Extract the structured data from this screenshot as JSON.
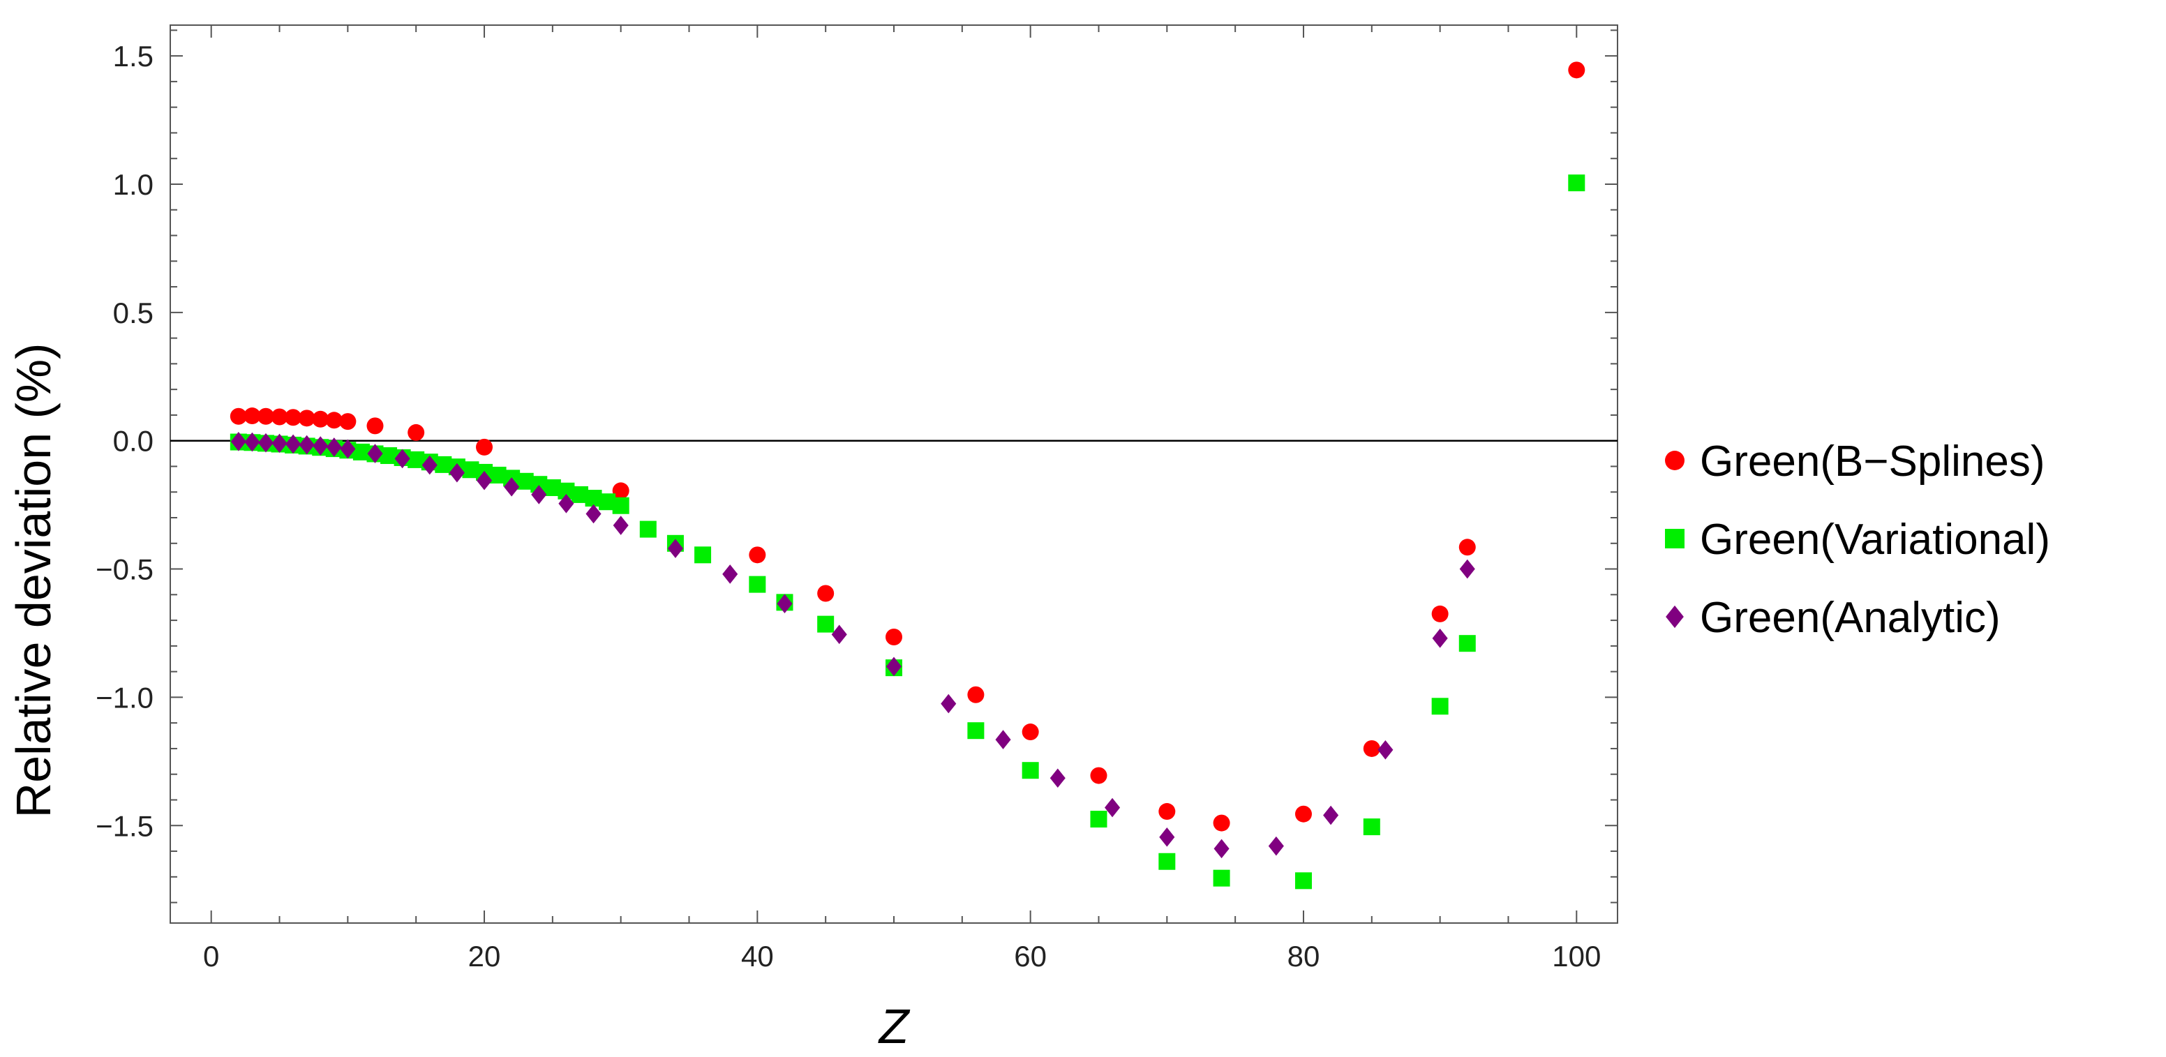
{
  "chart_data": {
    "type": "scatter",
    "xlabel": "Z",
    "ylabel": "Relative deviation (%)",
    "xlim": [
      -3,
      103
    ],
    "ylim": [
      -1.88,
      1.62
    ],
    "xticks": [
      0,
      20,
      40,
      60,
      80,
      100
    ],
    "yticks": [
      -1.5,
      -1.0,
      -0.5,
      0.0,
      0.5,
      1.0,
      1.5
    ],
    "xtick_labels": [
      "0",
      "20",
      "40",
      "60",
      "80",
      "100"
    ],
    "ytick_labels": [
      "−1.5",
      "−1.0",
      "−0.5",
      "0.0",
      "0.5",
      "1.0",
      "1.5"
    ],
    "reference_line_y": 0,
    "frame": true,
    "grid": false,
    "legend_placement": "right",
    "series": [
      {
        "name": "Green(B−Splines)",
        "marker": "circle",
        "color": "#ff0000",
        "x": [
          2,
          3,
          4,
          5,
          6,
          7,
          8,
          9,
          10,
          12,
          15,
          20,
          30,
          40,
          45,
          50,
          56,
          60,
          65,
          70,
          74,
          80,
          85,
          90,
          92,
          100
        ],
        "y": [
          0.095,
          0.097,
          0.095,
          0.093,
          0.091,
          0.088,
          0.084,
          0.08,
          0.075,
          0.058,
          0.032,
          -0.025,
          -0.195,
          -0.445,
          -0.595,
          -0.765,
          -0.99,
          -1.135,
          -1.305,
          -1.445,
          -1.49,
          -1.455,
          -1.2,
          -0.675,
          -0.415,
          1.445
        ]
      },
      {
        "name": "Green(Variational)",
        "marker": "square",
        "color": "#00ee00",
        "x": [
          2,
          3,
          4,
          5,
          6,
          7,
          8,
          9,
          10,
          11,
          12,
          13,
          14,
          15,
          16,
          17,
          18,
          19,
          20,
          21,
          22,
          23,
          24,
          25,
          26,
          27,
          28,
          29,
          30,
          32,
          34,
          36,
          40,
          42,
          45,
          50,
          56,
          60,
          65,
          70,
          74,
          80,
          85,
          90,
          92,
          100
        ],
        "y": [
          -0.005,
          -0.007,
          -0.01,
          -0.013,
          -0.017,
          -0.021,
          -0.026,
          -0.031,
          -0.037,
          -0.044,
          -0.051,
          -0.058,
          -0.066,
          -0.074,
          -0.083,
          -0.093,
          -0.102,
          -0.113,
          -0.123,
          -0.134,
          -0.146,
          -0.158,
          -0.17,
          -0.183,
          -0.196,
          -0.21,
          -0.224,
          -0.238,
          -0.253,
          -0.345,
          -0.4,
          -0.445,
          -0.56,
          -0.63,
          -0.715,
          -0.885,
          -1.13,
          -1.285,
          -1.475,
          -1.64,
          -1.705,
          -1.715,
          -1.505,
          -1.035,
          -0.79,
          1.005
        ]
      },
      {
        "name": "Green(Analytic)",
        "marker": "diamond",
        "color": "#800080",
        "x": [
          2,
          3,
          4,
          5,
          6,
          7,
          8,
          9,
          10,
          12,
          14,
          16,
          18,
          20,
          22,
          24,
          26,
          28,
          30,
          34,
          38,
          42,
          46,
          50,
          54,
          58,
          62,
          66,
          70,
          74,
          78,
          82,
          86,
          90,
          92
        ],
        "y": [
          -0.003,
          -0.005,
          -0.008,
          -0.01,
          -0.013,
          -0.016,
          -0.02,
          -0.025,
          -0.032,
          -0.05,
          -0.07,
          -0.095,
          -0.125,
          -0.155,
          -0.18,
          -0.21,
          -0.245,
          -0.285,
          -0.33,
          -0.42,
          -0.52,
          -0.635,
          -0.755,
          -0.88,
          -1.025,
          -1.165,
          -1.315,
          -1.43,
          -1.545,
          -1.59,
          -1.58,
          -1.46,
          -1.205,
          -0.77,
          -0.5
        ]
      }
    ]
  }
}
